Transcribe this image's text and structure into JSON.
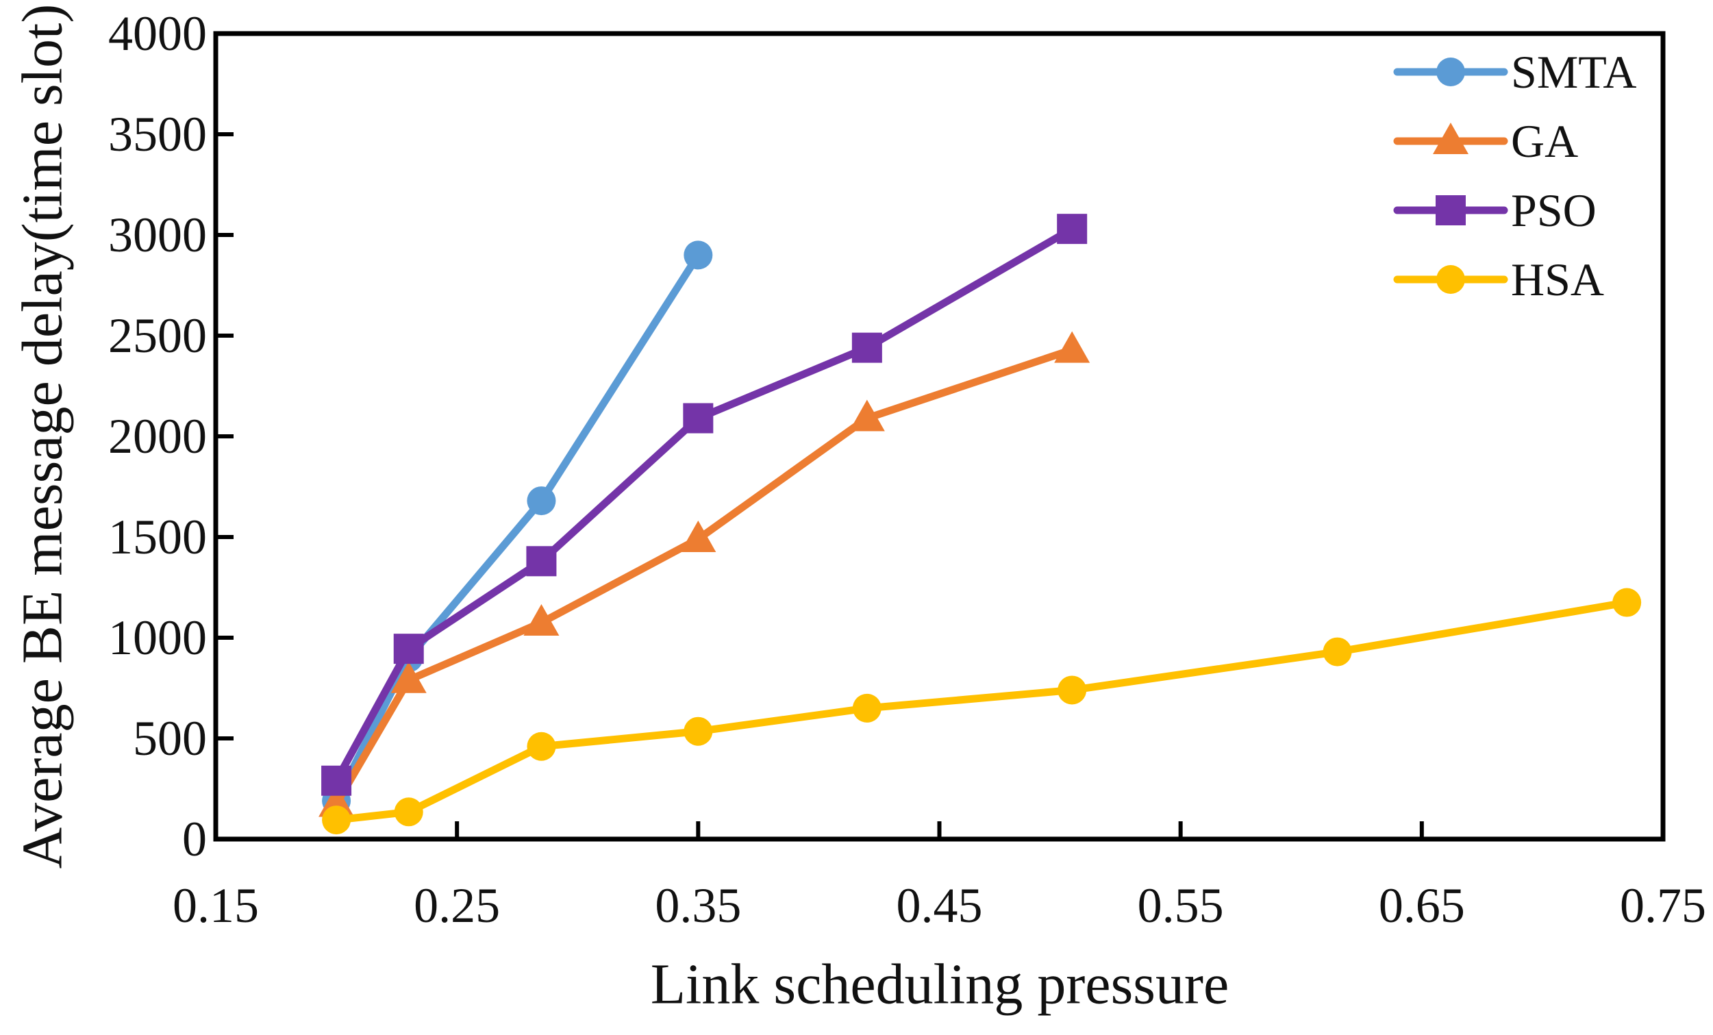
{
  "figure": {
    "background": "#ffffff",
    "axis_color": "#000000"
  },
  "chart_data": {
    "type": "line",
    "title": "",
    "xlabel": "Link scheduling pressure",
    "ylabel": "Average BE message delay(time slot)",
    "xlim": [
      0.15,
      0.75
    ],
    "ylim": [
      0,
      4000
    ],
    "x_tick_values": [
      0.15,
      0.25,
      0.35,
      0.45,
      0.55,
      0.65,
      0.75
    ],
    "x_tick_labels": [
      "0.15",
      "0.25",
      "0.35",
      "0.45",
      "0.55",
      "0.65",
      "0.75"
    ],
    "y_tick_values": [
      0,
      500,
      1000,
      1500,
      2000,
      2500,
      3000,
      3500,
      4000
    ],
    "y_tick_labels": [
      "0",
      "500",
      "1000",
      "1500",
      "2000",
      "2500",
      "3000",
      "3500",
      "4000"
    ],
    "grid": false,
    "legend_position": "top-right-inside",
    "series": [
      {
        "name": "SMTA",
        "color": "#5B9BD5",
        "marker": "circle",
        "x": [
          0.2,
          0.23,
          0.285,
          0.35
        ],
        "y": [
          190,
          900,
          1680,
          2900
        ]
      },
      {
        "name": "GA",
        "color": "#ED7D31",
        "marker": "triangle",
        "x": [
          0.2,
          0.23,
          0.285,
          0.35,
          0.42,
          0.505
        ],
        "y": [
          175,
          790,
          1075,
          1490,
          2090,
          2430
        ]
      },
      {
        "name": "PSO",
        "color": "#7434A8",
        "marker": "square",
        "x": [
          0.2,
          0.23,
          0.285,
          0.35,
          0.42,
          0.505
        ],
        "y": [
          290,
          945,
          1380,
          2090,
          2440,
          3030
        ]
      },
      {
        "name": "HSA",
        "color": "#FFC000",
        "marker": "circle",
        "x": [
          0.2,
          0.23,
          0.285,
          0.35,
          0.42,
          0.505,
          0.615,
          0.735
        ],
        "y": [
          95,
          135,
          460,
          535,
          650,
          740,
          930,
          1175
        ]
      }
    ]
  }
}
